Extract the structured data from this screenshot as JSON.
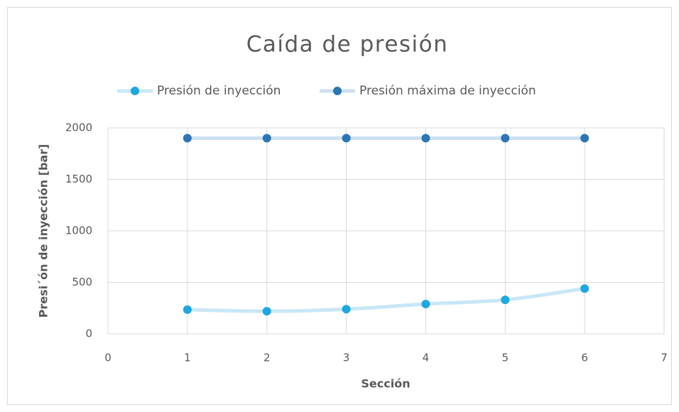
{
  "chart_data": {
    "type": "scatter",
    "title": "Caída de presión",
    "xlabel": "Sección",
    "ylabel": "Presi´ón de inyección [bar]",
    "x": [
      1,
      2,
      3,
      4,
      5,
      6
    ],
    "series": [
      {
        "name": "Presión de inyección",
        "color": "#1fa7e0",
        "line_color": "#c8e7f6",
        "values": [
          235,
          220,
          240,
          290,
          330,
          440
        ]
      },
      {
        "name": "Presión máxima de inyección",
        "color": "#2e75b6",
        "line_color": "#cde0f1",
        "values": [
          1900,
          1900,
          1900,
          1900,
          1900,
          1900
        ]
      }
    ],
    "xlim": [
      0,
      7
    ],
    "xticks": [
      0,
      1,
      2,
      3,
      4,
      5,
      6,
      7
    ],
    "ylim": [
      0,
      2000
    ],
    "yticks": [
      0,
      500,
      1000,
      1500,
      2000
    ],
    "grid": true,
    "smooth": true,
    "legend": "top"
  }
}
